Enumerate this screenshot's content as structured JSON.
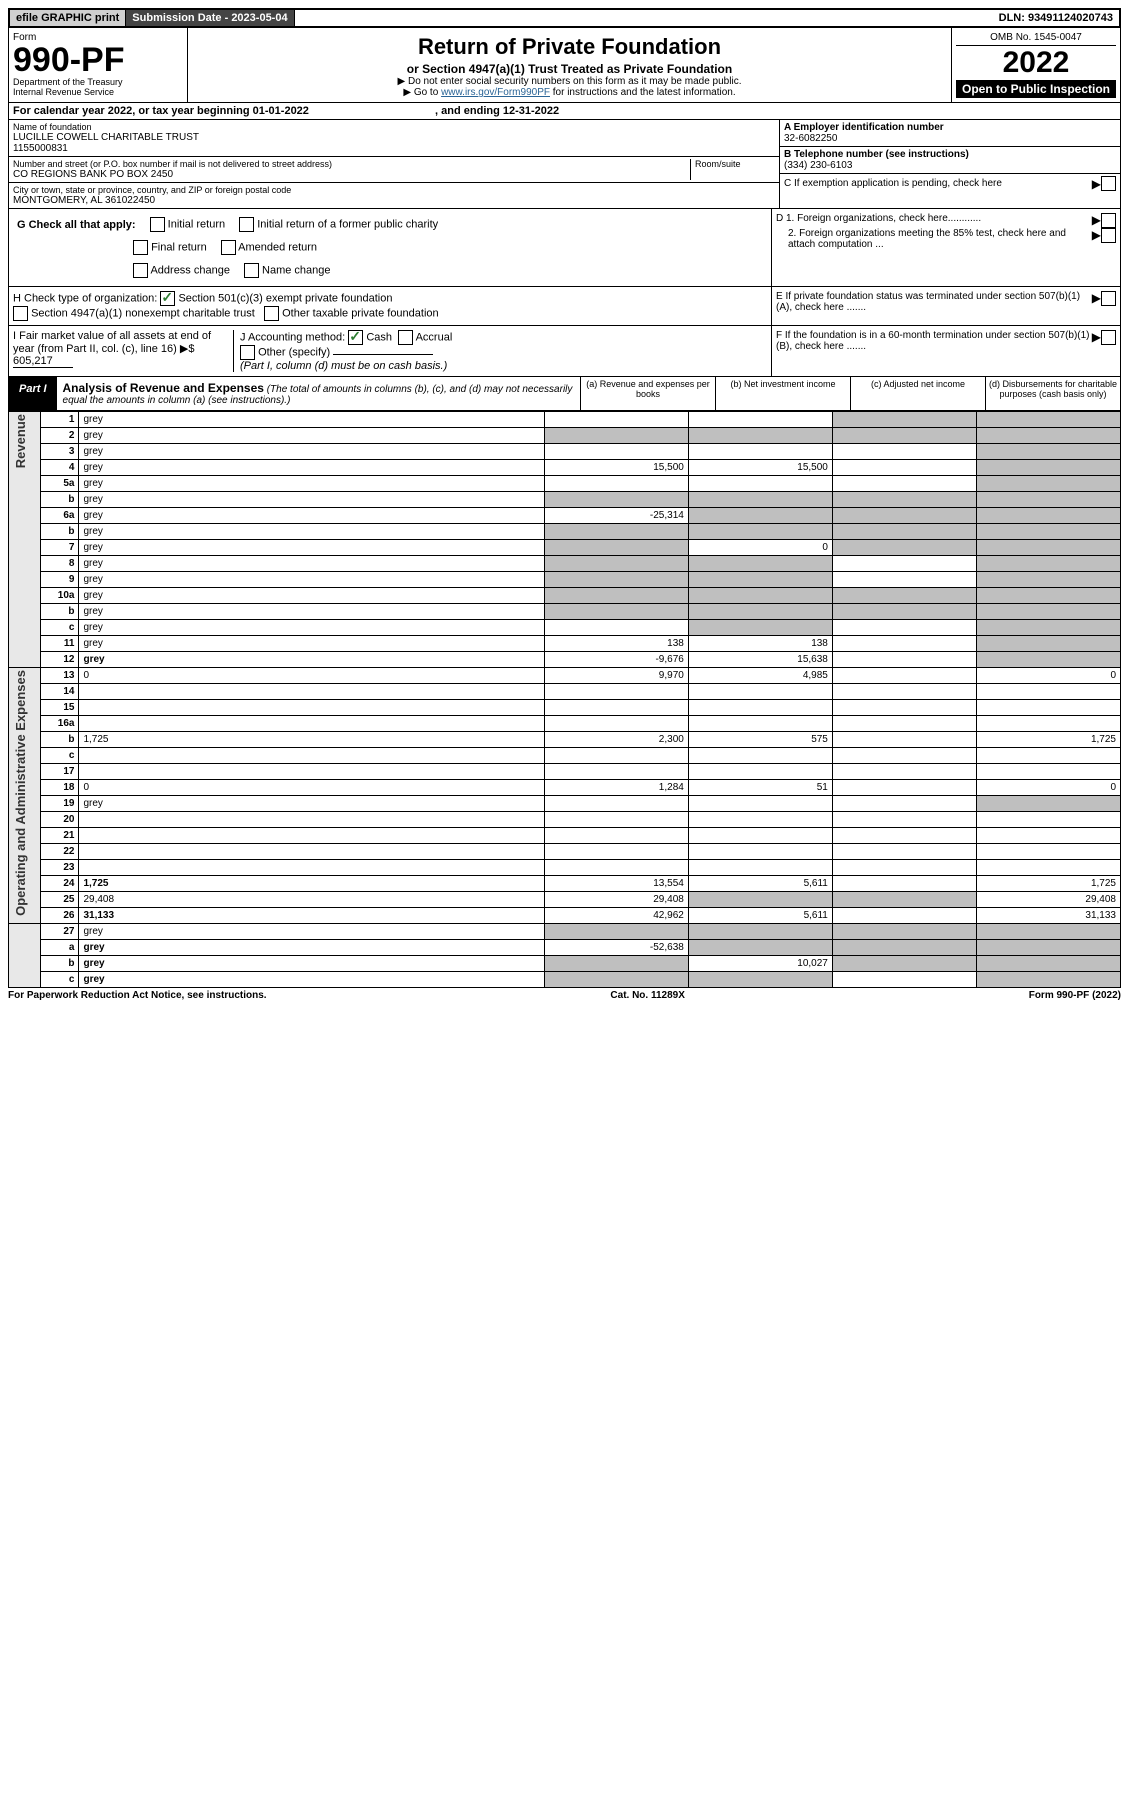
{
  "top": {
    "efile": "efile GRAPHIC print",
    "subdate_label": "Submission Date - 2023-05-04",
    "dln": "DLN: 93491124020743"
  },
  "header": {
    "form_word": "Form",
    "form_no": "990-PF",
    "dept": "Department of the Treasury",
    "irs": "Internal Revenue Service",
    "title": "Return of Private Foundation",
    "subtitle": "or Section 4947(a)(1) Trust Treated as Private Foundation",
    "instr1": "▶ Do not enter social security numbers on this form as it may be made public.",
    "instr2_a": "▶ Go to ",
    "instr2_link": "www.irs.gov/Form990PF",
    "instr2_b": " for instructions and the latest information.",
    "omb": "OMB No. 1545-0047",
    "year": "2022",
    "open": "Open to Public Inspection"
  },
  "cal": {
    "text_a": "For calendar year 2022, or tax year beginning 01-01-2022",
    "text_b": ", and ending 12-31-2022"
  },
  "id": {
    "name_label": "Name of foundation",
    "name": "LUCILLE COWELL CHARITABLE TRUST",
    "name2": "1155000831",
    "addr_label": "Number and street (or P.O. box number if mail is not delivered to street address)",
    "room_label": "Room/suite",
    "addr": "CO REGIONS BANK PO BOX 2450",
    "city_label": "City or town, state or province, country, and ZIP or foreign postal code",
    "city": "MONTGOMERY, AL  361022450",
    "a_label": "A Employer identification number",
    "a_val": "32-6082250",
    "b_label": "B Telephone number (see instructions)",
    "b_val": "(334) 230-6103",
    "c_label": "C If exemption application is pending, check here",
    "d1": "D 1. Foreign organizations, check here............",
    "d2": "2. Foreign organizations meeting the 85% test, check here and attach computation ...",
    "e": "E  If private foundation status was terminated under section 507(b)(1)(A), check here .......",
    "f": "F  If the foundation is in a 60-month termination under section 507(b)(1)(B), check here .......",
    "g_label": "G Check all that apply:",
    "g_opts": [
      "Initial return",
      "Initial return of a former public charity",
      "Final return",
      "Amended return",
      "Address change",
      "Name change"
    ],
    "h_label": "H Check type of organization:",
    "h_opt1": "Section 501(c)(3) exempt private foundation",
    "h_opt2": "Section 4947(a)(1) nonexempt charitable trust",
    "h_opt3": "Other taxable private foundation",
    "i_label": "I Fair market value of all assets at end of year (from Part II, col. (c), line 16) ▶$",
    "i_val": "605,217",
    "j_label": "J Accounting method:",
    "j_cash": "Cash",
    "j_accr": "Accrual",
    "j_other": "Other (specify)",
    "j_note": "(Part I, column (d) must be on cash basis.)"
  },
  "part1": {
    "label": "Part I",
    "title": "Analysis of Revenue and Expenses",
    "desc": "(The total of amounts in columns (b), (c), and (d) may not necessarily equal the amounts in column (a) (see instructions).)",
    "col_a": "(a)   Revenue and expenses per books",
    "col_b": "(b)   Net investment income",
    "col_c": "(c)   Adjusted net income",
    "col_d": "(d)   Disbursements for charitable purposes (cash basis only)",
    "side_rev": "Revenue",
    "side_exp": "Operating and Administrative Expenses"
  },
  "rows": [
    {
      "n": "1",
      "d": "grey",
      "a": "",
      "b": "",
      "c": "grey"
    },
    {
      "n": "2",
      "d": "grey",
      "a": "grey",
      "b": "grey",
      "c": "grey"
    },
    {
      "n": "3",
      "d": "grey",
      "a": "",
      "b": "",
      "c": ""
    },
    {
      "n": "4",
      "d": "grey",
      "a": "15,500",
      "b": "15,500",
      "c": ""
    },
    {
      "n": "5a",
      "d": "grey",
      "a": "",
      "b": "",
      "c": ""
    },
    {
      "n": "b",
      "d": "grey",
      "a": "grey",
      "b": "grey",
      "c": "grey"
    },
    {
      "n": "6a",
      "d": "grey",
      "a": "-25,314",
      "b": "grey",
      "c": "grey"
    },
    {
      "n": "b",
      "d": "grey",
      "a": "grey",
      "b": "grey",
      "c": "grey"
    },
    {
      "n": "7",
      "d": "grey",
      "a": "grey",
      "b": "0",
      "c": "grey"
    },
    {
      "n": "8",
      "d": "grey",
      "a": "grey",
      "b": "grey",
      "c": ""
    },
    {
      "n": "9",
      "d": "grey",
      "a": "grey",
      "b": "grey",
      "c": ""
    },
    {
      "n": "10a",
      "d": "grey",
      "a": "grey",
      "b": "grey",
      "c": "grey"
    },
    {
      "n": "b",
      "d": "grey",
      "a": "grey",
      "b": "grey",
      "c": "grey"
    },
    {
      "n": "c",
      "d": "grey",
      "a": "",
      "b": "grey",
      "c": ""
    },
    {
      "n": "11",
      "d": "grey",
      "a": "138",
      "b": "138",
      "c": ""
    },
    {
      "n": "12",
      "d": "grey",
      "a": "-9,676",
      "b": "15,638",
      "c": "",
      "bold": true
    }
  ],
  "exp_rows": [
    {
      "n": "13",
      "d": "0",
      "a": "9,970",
      "b": "4,985",
      "c": ""
    },
    {
      "n": "14",
      "d": "",
      "a": "",
      "b": "",
      "c": ""
    },
    {
      "n": "15",
      "d": "",
      "a": "",
      "b": "",
      "c": ""
    },
    {
      "n": "16a",
      "d": "",
      "a": "",
      "b": "",
      "c": ""
    },
    {
      "n": "b",
      "d": "1,725",
      "a": "2,300",
      "b": "575",
      "c": ""
    },
    {
      "n": "c",
      "d": "",
      "a": "",
      "b": "",
      "c": ""
    },
    {
      "n": "17",
      "d": "",
      "a": "",
      "b": "",
      "c": ""
    },
    {
      "n": "18",
      "d": "0",
      "a": "1,284",
      "b": "51",
      "c": ""
    },
    {
      "n": "19",
      "d": "grey",
      "a": "",
      "b": "",
      "c": ""
    },
    {
      "n": "20",
      "d": "",
      "a": "",
      "b": "",
      "c": ""
    },
    {
      "n": "21",
      "d": "",
      "a": "",
      "b": "",
      "c": ""
    },
    {
      "n": "22",
      "d": "",
      "a": "",
      "b": "",
      "c": ""
    },
    {
      "n": "23",
      "d": "",
      "a": "",
      "b": "",
      "c": ""
    },
    {
      "n": "24",
      "d": "1,725",
      "a": "13,554",
      "b": "5,611",
      "c": "",
      "bold": true
    },
    {
      "n": "25",
      "d": "29,408",
      "a": "29,408",
      "b": "grey",
      "c": "grey"
    },
    {
      "n": "26",
      "d": "31,133",
      "a": "42,962",
      "b": "5,611",
      "c": "",
      "bold": true
    }
  ],
  "final_rows": [
    {
      "n": "27",
      "d": "grey",
      "a": "grey",
      "b": "grey",
      "c": "grey"
    },
    {
      "n": "a",
      "d": "grey",
      "a": "-52,638",
      "b": "grey",
      "c": "grey",
      "bold": true
    },
    {
      "n": "b",
      "d": "grey",
      "a": "grey",
      "b": "10,027",
      "c": "grey",
      "bold": true
    },
    {
      "n": "c",
      "d": "grey",
      "a": "grey",
      "b": "grey",
      "c": "",
      "bold": true
    }
  ],
  "footer": {
    "left": "For Paperwork Reduction Act Notice, see instructions.",
    "mid": "Cat. No. 11289X",
    "right": "Form 990-PF (2022)"
  }
}
